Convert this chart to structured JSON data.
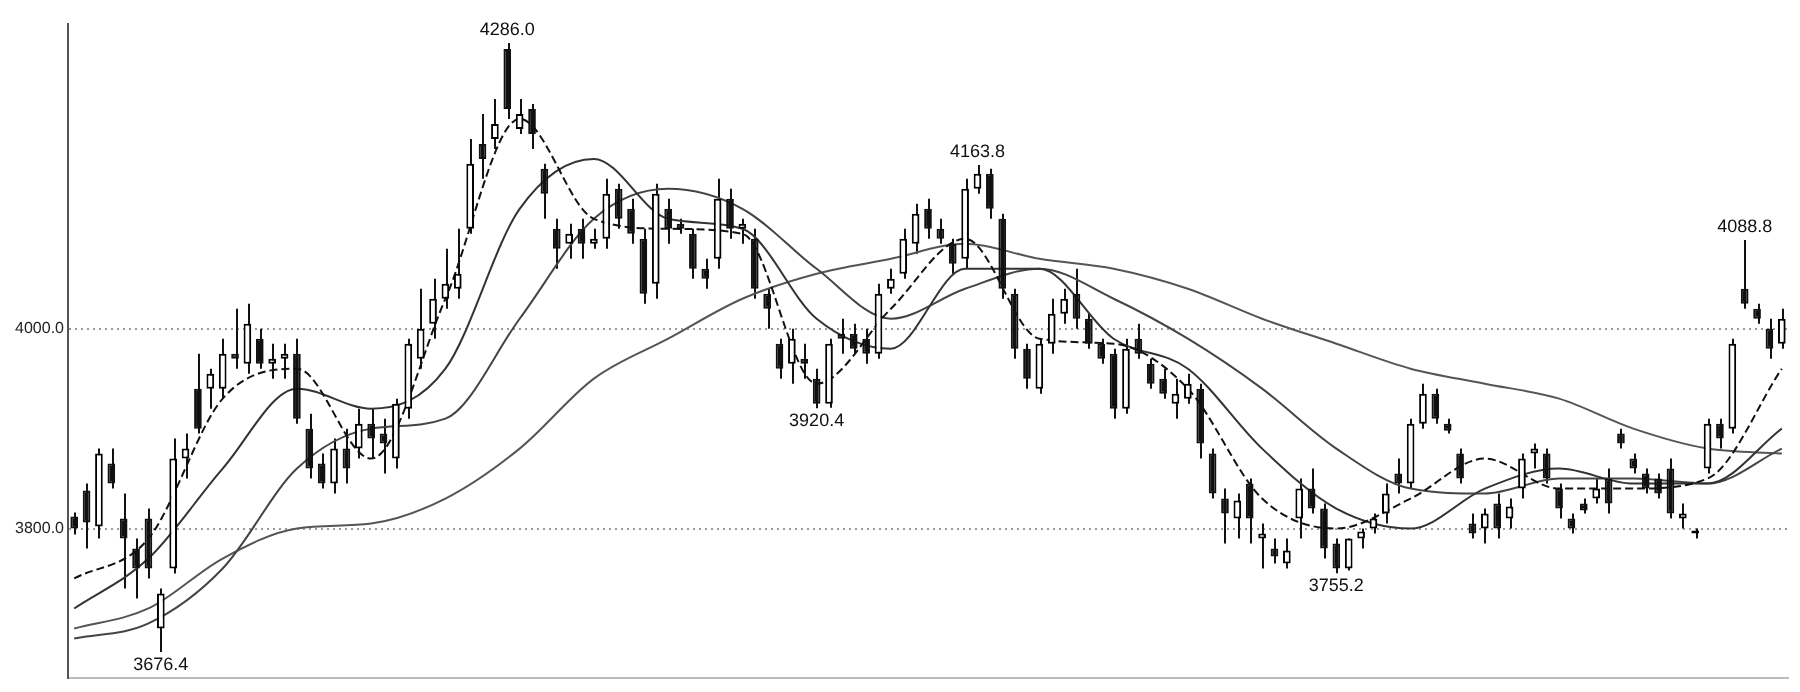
{
  "chart_data": {
    "type": "candlestick",
    "categories": [
      null,
      null,
      null,
      null,
      null,
      null,
      null,
      null,
      null,
      null,
      null,
      null,
      null,
      null,
      null,
      null,
      null,
      null,
      null,
      null,
      null,
      null,
      null,
      null,
      null,
      null,
      null,
      null,
      null,
      null,
      null,
      null,
      null,
      null,
      null,
      null,
      null,
      null,
      null,
      null,
      null,
      null,
      null,
      null,
      null,
      null,
      null,
      null,
      null,
      null,
      null,
      null,
      null,
      null,
      null,
      null,
      null,
      null,
      null,
      null,
      null,
      null,
      null,
      null,
      null,
      null,
      null,
      null,
      null,
      null,
      null,
      null,
      null,
      null,
      null,
      null,
      null,
      null,
      null,
      null,
      null,
      null,
      null,
      null,
      null,
      null,
      null,
      null,
      null,
      null,
      null,
      null,
      null,
      null,
      null,
      null,
      null,
      null,
      null,
      null,
      null,
      null,
      null,
      null,
      null,
      null,
      null,
      null,
      null,
      null,
      null,
      null,
      null,
      null,
      null,
      null,
      null,
      null,
      null,
      null,
      null,
      null,
      null,
      null,
      null,
      null,
      null,
      null,
      null,
      null,
      null,
      null,
      null,
      null,
      null,
      null,
      null,
      null,
      null
    ],
    "ohlc": [
      [
        3812,
        3816,
        3794,
        3800
      ],
      [
        3838,
        3845,
        3780,
        3806
      ],
      [
        3802,
        3880,
        3790,
        3875
      ],
      [
        3865,
        3880,
        3840,
        3845
      ],
      [
        3810,
        3835,
        3740,
        3790
      ],
      [
        3780,
        3790,
        3730,
        3760
      ],
      [
        3810,
        3820,
        3750,
        3760
      ],
      [
        3700,
        3740,
        3676.4,
        3735
      ],
      [
        3760,
        3890,
        3755,
        3870
      ],
      [
        3870,
        3895,
        3850,
        3880
      ],
      [
        3940,
        3975,
        3895,
        3900
      ],
      [
        3940,
        3960,
        3920,
        3955
      ],
      [
        3940,
        3990,
        3930,
        3975
      ],
      [
        3975,
        4020,
        3960,
        3970
      ],
      [
        3965,
        4025,
        3955,
        4005
      ],
      [
        3990,
        4000,
        3960,
        3965
      ],
      [
        3965,
        3985,
        3950,
        3970
      ],
      [
        3970,
        3985,
        3950,
        3975
      ],
      [
        3975,
        3990,
        3905,
        3910
      ],
      [
        3900,
        3915,
        3850,
        3860
      ],
      [
        3865,
        3875,
        3840,
        3845
      ],
      [
        3845,
        3890,
        3835,
        3880
      ],
      [
        3880,
        3900,
        3845,
        3860
      ],
      [
        3880,
        3920,
        3870,
        3905
      ],
      [
        3905,
        3920,
        3870,
        3890
      ],
      [
        3895,
        3910,
        3855,
        3885
      ],
      [
        3870,
        3930,
        3860,
        3925
      ],
      [
        3920,
        3990,
        3910,
        3985
      ],
      [
        3970,
        4040,
        3960,
        4000
      ],
      [
        4005,
        4050,
        3990,
        4030
      ],
      [
        4030,
        4080,
        4020,
        4045
      ],
      [
        4040,
        4100,
        4030,
        4055
      ],
      [
        4100,
        4190,
        4095,
        4165
      ],
      [
        4185,
        4215,
        4150,
        4170
      ],
      [
        4190,
        4230,
        4180,
        4205
      ],
      [
        4280,
        4286,
        4210,
        4220
      ],
      [
        4200,
        4230,
        4195,
        4215
      ],
      [
        4220,
        4225,
        4180,
        4195
      ],
      [
        4160,
        4165,
        4110,
        4135
      ],
      [
        4100,
        4110,
        4060,
        4080
      ],
      [
        4085,
        4105,
        4070,
        4095
      ],
      [
        4100,
        4110,
        4070,
        4085
      ],
      [
        4085,
        4100,
        4080,
        4090
      ],
      [
        4090,
        4150,
        4080,
        4135
      ],
      [
        4140,
        4145,
        4100,
        4110
      ],
      [
        4120,
        4130,
        4085,
        4095
      ],
      [
        4090,
        4100,
        4025,
        4035
      ],
      [
        4045,
        4145,
        4030,
        4135
      ],
      [
        4120,
        4130,
        4085,
        4100
      ],
      [
        4105,
        4110,
        4095,
        4100
      ],
      [
        4095,
        4100,
        4050,
        4060
      ],
      [
        4060,
        4070,
        4040,
        4050
      ],
      [
        4070,
        4150,
        4060,
        4130
      ],
      [
        4130,
        4140,
        4090,
        4100
      ],
      [
        4100,
        4110,
        4085,
        4105
      ],
      [
        4090,
        4100,
        4030,
        4040
      ],
      [
        4035,
        4040,
        4000,
        4020
      ],
      [
        3985,
        3990,
        3950,
        3960
      ],
      [
        3965,
        4000,
        3945,
        3990
      ],
      [
        3970,
        3985,
        3950,
        3965
      ],
      [
        3950,
        3960,
        3920.4,
        3925
      ],
      [
        3925,
        3990,
        3921,
        3985
      ],
      [
        3995,
        4010,
        3975,
        3990
      ],
      [
        3995,
        4005,
        3975,
        3980
      ],
      [
        3990,
        4000,
        3965,
        3975
      ],
      [
        3975,
        4045,
        3970,
        4035
      ],
      [
        4040,
        4060,
        4035,
        4050
      ],
      [
        4055,
        4100,
        4050,
        4090
      ],
      [
        4085,
        4125,
        4075,
        4115
      ],
      [
        4120,
        4130,
        4090,
        4100
      ],
      [
        4100,
        4110,
        4085,
        4090
      ],
      [
        4085,
        4090,
        4055,
        4065
      ],
      [
        4070,
        4150,
        4060,
        4140
      ],
      [
        4140,
        4163.8,
        4135,
        4155
      ],
      [
        4155,
        4160,
        4110,
        4120
      ],
      [
        4110,
        4115,
        4030,
        4040
      ],
      [
        4035,
        4040,
        3970,
        3980
      ],
      [
        3980,
        3985,
        3940,
        3950
      ],
      [
        3940,
        3990,
        3935,
        3985
      ],
      [
        3985,
        4030,
        3975,
        4015
      ],
      [
        4015,
        4040,
        4005,
        4030
      ],
      [
        4035,
        4060,
        4000,
        4010
      ],
      [
        4010,
        4015,
        3980,
        3985
      ],
      [
        3985,
        3990,
        3965,
        3970
      ],
      [
        3975,
        3980,
        3910,
        3920
      ],
      [
        3920,
        3990,
        3915,
        3980
      ],
      [
        3990,
        4005,
        3970,
        3975
      ],
      [
        3965,
        3970,
        3940,
        3945
      ],
      [
        3950,
        3960,
        3930,
        3935
      ],
      [
        3925,
        3950,
        3910,
        3935
      ],
      [
        3930,
        3955,
        3925,
        3945
      ],
      [
        3940,
        3945,
        3870,
        3885
      ],
      [
        3875,
        3880,
        3830,
        3835
      ],
      [
        3830,
        3840,
        3785,
        3815
      ],
      [
        3810,
        3835,
        3790,
        3828
      ],
      [
        3845,
        3850,
        3785,
        3810
      ],
      [
        3790,
        3805,
        3760,
        3795
      ],
      [
        3780,
        3790,
        3765,
        3772
      ],
      [
        3765,
        3790,
        3760,
        3778
      ],
      [
        3810,
        3850,
        3790,
        3840
      ],
      [
        3840,
        3860,
        3815,
        3820
      ],
      [
        3820,
        3825,
        3770,
        3780
      ],
      [
        3785,
        3790,
        3755.2,
        3760
      ],
      [
        3760,
        3790,
        3758,
        3790
      ],
      [
        3790,
        3800,
        3780,
        3797
      ],
      [
        3800,
        3815,
        3795,
        3810
      ],
      [
        3815,
        3845,
        3805,
        3835
      ],
      [
        3855,
        3870,
        3835,
        3845
      ],
      [
        3845,
        3910,
        3840,
        3905
      ],
      [
        3905,
        3945,
        3900,
        3935
      ],
      [
        3935,
        3940,
        3905,
        3910
      ],
      [
        3905,
        3910,
        3895,
        3898
      ],
      [
        3875,
        3880,
        3845,
        3850
      ],
      [
        3805,
        3815,
        3790,
        3795
      ],
      [
        3800,
        3820,
        3785,
        3815
      ],
      [
        3825,
        3835,
        3790,
        3800
      ],
      [
        3810,
        3830,
        3800,
        3822
      ],
      [
        3840,
        3875,
        3830,
        3870
      ],
      [
        3875,
        3885,
        3860,
        3880
      ],
      [
        3875,
        3880,
        3845,
        3850
      ],
      [
        3840,
        3845,
        3810,
        3820
      ],
      [
        3810,
        3815,
        3795,
        3800
      ],
      [
        3825,
        3830,
        3815,
        3818
      ],
      [
        3830,
        3850,
        3825,
        3840
      ],
      [
        3850,
        3860,
        3815,
        3825
      ],
      [
        3895,
        3900,
        3880,
        3885
      ],
      [
        3870,
        3875,
        3855,
        3860
      ],
      [
        3855,
        3860,
        3835,
        3840
      ],
      [
        3850,
        3855,
        3830,
        3835
      ],
      [
        3860,
        3870,
        3810,
        3815
      ],
      [
        3810,
        3825,
        3800,
        3815
      ],
      [
        3795,
        3800,
        3790,
        3798
      ],
      [
        3860,
        3910,
        3855,
        3905
      ],
      [
        3905,
        3910,
        3880,
        3890
      ],
      [
        3900,
        3990,
        3895,
        3985
      ],
      [
        4040,
        4088.8,
        4020,
        4025
      ],
      [
        4020,
        4025,
        4005,
        4010
      ],
      [
        4000,
        4010,
        3970,
        3980
      ],
      [
        3985,
        4020,
        3980,
        4010
      ]
    ],
    "series": [
      {
        "type": "line",
        "color": "#111111",
        "line_style": "dashed",
        "values": [
          3750,
          null,
          null,
          null,
          null,
          null,
          3790,
          null,
          null,
          null,
          null,
          null,
          3930,
          null,
          null,
          null,
          null,
          null,
          3960,
          null,
          null,
          null,
          null,
          null,
          3870,
          null,
          null,
          null,
          null,
          null,
          4030,
          null,
          null,
          null,
          null,
          null,
          4210,
          null,
          null,
          null,
          null,
          null,
          4110,
          null,
          null,
          null,
          null,
          null,
          4100,
          null,
          null,
          null,
          null,
          null,
          4095,
          null,
          null,
          null,
          null,
          null,
          3945,
          null,
          null,
          null,
          null,
          null,
          4020,
          null,
          null,
          null,
          null,
          null,
          4090,
          null,
          null,
          null,
          null,
          null,
          3990,
          null,
          null,
          null,
          null,
          null,
          3985,
          null,
          null,
          null,
          null,
          null,
          3940,
          null,
          null,
          null,
          null,
          null,
          3830,
          null,
          null,
          null,
          null,
          null,
          3800,
          null,
          null,
          null,
          null,
          null,
          3830,
          null,
          null,
          null,
          null,
          null,
          3870,
          null,
          null,
          null,
          null,
          null,
          3840,
          null,
          null,
          null,
          null,
          null,
          3840,
          null,
          null,
          null,
          null,
          null,
          3850,
          null,
          null,
          null,
          null,
          null,
          3960
        ]
      },
      {
        "type": "line",
        "color": "#333333",
        "values": [
          3720,
          null,
          null,
          null,
          null,
          null,
          3770,
          null,
          null,
          null,
          null,
          null,
          3860,
          null,
          null,
          null,
          null,
          null,
          3940,
          null,
          null,
          null,
          null,
          null,
          3920,
          null,
          null,
          null,
          null,
          null,
          3960,
          null,
          null,
          null,
          null,
          null,
          4120,
          null,
          null,
          null,
          null,
          null,
          4170,
          null,
          null,
          null,
          null,
          null,
          4110,
          null,
          null,
          null,
          null,
          null,
          4100,
          null,
          null,
          null,
          null,
          null,
          4010,
          null,
          null,
          null,
          null,
          null,
          3980,
          null,
          null,
          null,
          null,
          null,
          4060,
          null,
          null,
          null,
          null,
          null,
          4060,
          null,
          null,
          null,
          null,
          null,
          3990,
          null,
          null,
          null,
          null,
          null,
          3960,
          null,
          null,
          null,
          null,
          null,
          3880,
          null,
          null,
          null,
          null,
          null,
          3820,
          null,
          null,
          null,
          null,
          null,
          3800,
          null,
          null,
          null,
          null,
          null,
          3840,
          null,
          null,
          null,
          null,
          null,
          3860,
          null,
          null,
          null,
          null,
          null,
          3845,
          null,
          null,
          null,
          null,
          null,
          3845,
          null,
          null,
          null,
          null,
          null,
          3900
        ]
      },
      {
        "type": "line",
        "color": "#444444",
        "values": [
          3690,
          null,
          null,
          null,
          null,
          null,
          3705,
          null,
          null,
          null,
          null,
          null,
          3760,
          null,
          null,
          null,
          null,
          null,
          3860,
          null,
          null,
          null,
          null,
          null,
          3900,
          null,
          null,
          null,
          null,
          null,
          3910,
          null,
          null,
          null,
          null,
          null,
          4010,
          null,
          null,
          null,
          null,
          null,
          4110,
          null,
          null,
          null,
          null,
          null,
          4140,
          null,
          null,
          null,
          null,
          null,
          4120,
          null,
          null,
          null,
          null,
          null,
          4060,
          null,
          null,
          null,
          null,
          null,
          4010,
          null,
          null,
          null,
          null,
          null,
          4040,
          null,
          null,
          null,
          null,
          null,
          4060,
          null,
          null,
          null,
          null,
          null,
          4030,
          null,
          null,
          null,
          null,
          null,
          3990,
          null,
          null,
          null,
          null,
          null,
          3940,
          null,
          null,
          null,
          null,
          null,
          3880,
          null,
          null,
          null,
          null,
          null,
          3840,
          null,
          null,
          null,
          null,
          null,
          3835,
          null,
          null,
          null,
          null,
          null,
          3850,
          null,
          null,
          null,
          null,
          null,
          3850,
          null,
          null,
          null,
          null,
          null,
          3845,
          null,
          null,
          null,
          null,
          null,
          3880
        ]
      },
      {
        "type": "line",
        "color": "#555555",
        "values": [
          3700,
          null,
          null,
          null,
          null,
          null,
          3720,
          null,
          null,
          null,
          null,
          null,
          3770,
          null,
          null,
          null,
          null,
          null,
          3800,
          null,
          null,
          null,
          null,
          null,
          3805,
          null,
          null,
          null,
          null,
          null,
          3830,
          null,
          null,
          null,
          null,
          null,
          3880,
          null,
          null,
          null,
          null,
          null,
          3950,
          null,
          null,
          null,
          null,
          null,
          3990,
          null,
          null,
          null,
          null,
          null,
          4030,
          null,
          null,
          null,
          null,
          null,
          4055,
          null,
          null,
          null,
          null,
          null,
          4070,
          null,
          null,
          null,
          null,
          null,
          4085,
          null,
          null,
          null,
          null,
          null,
          4070,
          null,
          null,
          null,
          null,
          null,
          4060,
          null,
          null,
          null,
          null,
          null,
          4040,
          null,
          null,
          null,
          null,
          null,
          4010,
          null,
          null,
          null,
          null,
          null,
          3985,
          null,
          null,
          null,
          null,
          null,
          3960,
          null,
          null,
          null,
          null,
          null,
          3945,
          null,
          null,
          null,
          null,
          null,
          3930,
          null,
          null,
          null,
          null,
          null,
          3900,
          null,
          null,
          null,
          null,
          null,
          3880,
          null,
          null,
          null,
          null,
          null,
          3875
        ]
      }
    ],
    "ylim": [
      3650,
      4305
    ],
    "yticks": [
      {
        "value": 4000,
        "label": "4000.0"
      },
      {
        "value": 3800,
        "label": "3800.0"
      }
    ],
    "grid": "y",
    "tick_labels": "y",
    "annotations": [
      {
        "text": "4286.0",
        "y": 4286
      },
      {
        "text": "3676.4",
        "y": 3676.4
      },
      {
        "text": "3920.4",
        "y": 3920.4
      },
      {
        "text": "4163.8",
        "y": 4163.8
      },
      {
        "text": "3755.2",
        "y": 3755.2
      },
      {
        "text": "4088.8",
        "y": 4088.8
      }
    ]
  }
}
